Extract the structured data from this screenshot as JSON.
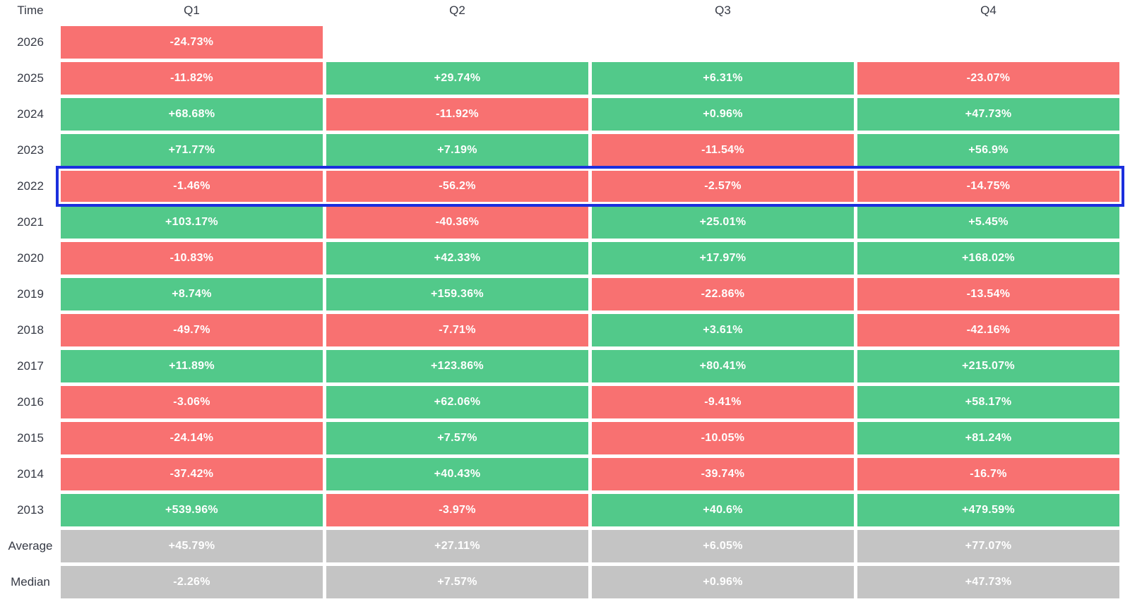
{
  "header": {
    "time_label": "Time",
    "quarters": [
      "Q1",
      "Q2",
      "Q3",
      "Q4"
    ]
  },
  "colors": {
    "positive": "#52C98A",
    "negative": "#F87171",
    "neutral": "#C4C4C4",
    "highlight_border": "#1B2FDE",
    "label_text": "#363A45",
    "value_text": "#FFFFFF"
  },
  "table": {
    "rows": [
      {
        "label": "2026",
        "type": "year",
        "highlighted": false,
        "cells": [
          "-24.73%",
          null,
          null,
          null
        ]
      },
      {
        "label": "2025",
        "type": "year",
        "highlighted": false,
        "cells": [
          "-11.82%",
          "+29.74%",
          "+6.31%",
          "-23.07%"
        ]
      },
      {
        "label": "2024",
        "type": "year",
        "highlighted": false,
        "cells": [
          "+68.68%",
          "-11.92%",
          "+0.96%",
          "+47.73%"
        ]
      },
      {
        "label": "2023",
        "type": "year",
        "highlighted": false,
        "cells": [
          "+71.77%",
          "+7.19%",
          "-11.54%",
          "+56.9%"
        ]
      },
      {
        "label": "2022",
        "type": "year",
        "highlighted": true,
        "cells": [
          "-1.46%",
          "-56.2%",
          "-2.57%",
          "-14.75%"
        ]
      },
      {
        "label": "2021",
        "type": "year",
        "highlighted": false,
        "cells": [
          "+103.17%",
          "-40.36%",
          "+25.01%",
          "+5.45%"
        ]
      },
      {
        "label": "2020",
        "type": "year",
        "highlighted": false,
        "cells": [
          "-10.83%",
          "+42.33%",
          "+17.97%",
          "+168.02%"
        ]
      },
      {
        "label": "2019",
        "type": "year",
        "highlighted": false,
        "cells": [
          "+8.74%",
          "+159.36%",
          "-22.86%",
          "-13.54%"
        ]
      },
      {
        "label": "2018",
        "type": "year",
        "highlighted": false,
        "cells": [
          "-49.7%",
          "-7.71%",
          "+3.61%",
          "-42.16%"
        ]
      },
      {
        "label": "2017",
        "type": "year",
        "highlighted": false,
        "cells": [
          "+11.89%",
          "+123.86%",
          "+80.41%",
          "+215.07%"
        ]
      },
      {
        "label": "2016",
        "type": "year",
        "highlighted": false,
        "cells": [
          "-3.06%",
          "+62.06%",
          "-9.41%",
          "+58.17%"
        ]
      },
      {
        "label": "2015",
        "type": "year",
        "highlighted": false,
        "cells": [
          "-24.14%",
          "+7.57%",
          "-10.05%",
          "+81.24%"
        ]
      },
      {
        "label": "2014",
        "type": "year",
        "highlighted": false,
        "cells": [
          "-37.42%",
          "+40.43%",
          "-39.74%",
          "-16.7%"
        ]
      },
      {
        "label": "2013",
        "type": "year",
        "highlighted": false,
        "cells": [
          "+539.96%",
          "-3.97%",
          "+40.6%",
          "+479.59%"
        ]
      },
      {
        "label": "Average",
        "type": "summary",
        "highlighted": false,
        "cells": [
          "+45.79%",
          "+27.11%",
          "+6.05%",
          "+77.07%"
        ]
      },
      {
        "label": "Median",
        "type": "summary",
        "highlighted": false,
        "cells": [
          "-2.26%",
          "+7.57%",
          "+0.96%",
          "+47.73%"
        ]
      }
    ]
  },
  "chart_data": {
    "type": "heatmap",
    "unit": "%",
    "columns": [
      "Q1",
      "Q2",
      "Q3",
      "Q4"
    ],
    "row_axis_label": "Time",
    "highlighted_row": "2022",
    "rows": [
      {
        "label": "2026",
        "values": [
          -24.73,
          null,
          null,
          null
        ]
      },
      {
        "label": "2025",
        "values": [
          -11.82,
          29.74,
          6.31,
          -23.07
        ]
      },
      {
        "label": "2024",
        "values": [
          68.68,
          -11.92,
          0.96,
          47.73
        ]
      },
      {
        "label": "2023",
        "values": [
          71.77,
          7.19,
          -11.54,
          56.9
        ]
      },
      {
        "label": "2022",
        "values": [
          -1.46,
          -56.2,
          -2.57,
          -14.75
        ]
      },
      {
        "label": "2021",
        "values": [
          103.17,
          -40.36,
          25.01,
          5.45
        ]
      },
      {
        "label": "2020",
        "values": [
          -10.83,
          42.33,
          17.97,
          168.02
        ]
      },
      {
        "label": "2019",
        "values": [
          8.74,
          159.36,
          -22.86,
          -13.54
        ]
      },
      {
        "label": "2018",
        "values": [
          -49.7,
          -7.71,
          3.61,
          -42.16
        ]
      },
      {
        "label": "2017",
        "values": [
          11.89,
          123.86,
          80.41,
          215.07
        ]
      },
      {
        "label": "2016",
        "values": [
          -3.06,
          62.06,
          -9.41,
          58.17
        ]
      },
      {
        "label": "2015",
        "values": [
          -24.14,
          7.57,
          -10.05,
          81.24
        ]
      },
      {
        "label": "2014",
        "values": [
          -37.42,
          40.43,
          -39.74,
          -16.7
        ]
      },
      {
        "label": "2013",
        "values": [
          539.96,
          -3.97,
          40.6,
          479.59
        ]
      },
      {
        "label": "Average",
        "values": [
          45.79,
          27.11,
          6.05,
          77.07
        ]
      },
      {
        "label": "Median",
        "values": [
          -2.26,
          7.57,
          0.96,
          47.73
        ]
      }
    ],
    "color_coding": {
      "positive": "green",
      "negative": "red",
      "summary": "gray"
    },
    "legend_position": "none",
    "grid": false
  }
}
